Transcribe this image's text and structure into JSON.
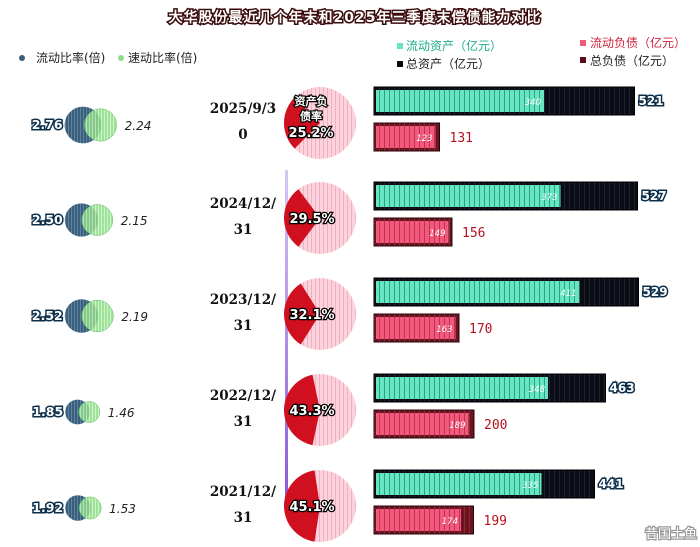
{
  "chart_data": {
    "type": "bar",
    "title": "大华股份最近几个年末和2025年三季度末偿债能力对比",
    "categories": [
      "2025/9/30",
      "2024/12/31",
      "2023/12/31",
      "2022/12/31",
      "2021/12/31"
    ],
    "date_lines": [
      [
        "2025/9/3",
        "0"
      ],
      [
        "2024/12/",
        "31"
      ],
      [
        "2023/12/",
        "31"
      ],
      [
        "2022/12/",
        "31"
      ],
      [
        "2021/12/",
        "31"
      ]
    ],
    "pie_caption": "资产负债率",
    "pie_caption_lines": [
      "资产负",
      "债率"
    ],
    "series": [
      {
        "name": "流动资产（亿元）",
        "values": [
          340,
          373,
          411,
          348,
          335
        ]
      },
      {
        "name": "总资产（亿元）",
        "values": [
          521,
          527,
          529,
          463,
          441
        ]
      },
      {
        "name": "流动负债（亿元）",
        "values": [
          123,
          149,
          163,
          189,
          174
        ]
      },
      {
        "name": "总负债（亿元）",
        "values": [
          131,
          156,
          170,
          200,
          199
        ]
      },
      {
        "name": "流动比率(倍)",
        "values": [
          2.76,
          2.5,
          2.52,
          1.85,
          1.92
        ]
      },
      {
        "name": "速动比率(倍)",
        "values": [
          2.24,
          2.15,
          2.19,
          1.46,
          1.53
        ]
      },
      {
        "name": "资产负债率",
        "values": [
          25.2,
          29.5,
          32.1,
          43.3,
          45.1
        ]
      }
    ],
    "pct_labels": [
      "25.2%",
      "29.5%",
      "32.1%",
      "43.3%",
      "45.1%"
    ],
    "current_ratio_labels": [
      "2.76",
      "2.50",
      "2.52",
      "1.85",
      "1.92"
    ],
    "quick_ratio_labels": [
      "2.24",
      "2.15",
      "2.19",
      "1.46",
      "1.53"
    ],
    "legend": {
      "current_ratio": "流动比率(倍)",
      "quick_ratio": "速动比率(倍)",
      "current_assets": "流动资产（亿元）",
      "total_assets": "总资产（亿元）",
      "current_liabilities": "流动负债（亿元）",
      "total_liabilities": "总负债（亿元）"
    },
    "xlim": [
      0,
      540
    ],
    "colors": {
      "current_assets": "#66e6c0",
      "total_assets": "#0a0a0a",
      "current_liabilities": "#f25a7c",
      "total_liabilities": "#5a0f18",
      "pie_debt": "#d0101e",
      "pie_rest": "#fbd3dc",
      "current_ratio": "#3b5f7a",
      "quick_ratio": "#8fdc8a"
    }
  },
  "watermark": "昔国土鱼"
}
